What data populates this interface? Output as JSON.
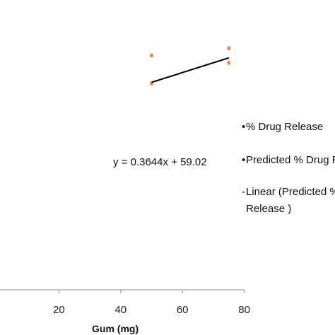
{
  "chart_data": {
    "type": "scatter",
    "xlabel": "Gum  (mg)",
    "xlim": [
      0,
      80
    ],
    "x_ticks": [
      "20",
      "40",
      "60",
      "80"
    ],
    "ylim": [
      0,
      100
    ],
    "series": [
      {
        "name": "% Drug Release",
        "color": "#4472C4",
        "marker": "dot",
        "x": [
          50,
          50,
          75,
          75
        ],
        "y": [
          87.3,
          76.7,
          89.8,
          84.6
        ]
      },
      {
        "name": "Predicted % Drug Release",
        "color": "#ED7D31",
        "marker": "square",
        "x": [
          50,
          50,
          75,
          75
        ],
        "y": [
          87.2,
          76.8,
          89.9,
          84.5
        ]
      },
      {
        "name": "Linear (Predicted % Drug Release )",
        "color": "#000000",
        "marker": "line",
        "x": [
          50,
          75
        ],
        "y": [
          77.24,
          86.35
        ]
      }
    ],
    "trendline_equation": "y = 0.3644x + 59.02",
    "legend": {
      "position": "right",
      "entries": [
        {
          "symbol": "•",
          "lines": [
            "% Drug Release"
          ],
          "color": "#4472C4"
        },
        {
          "symbol": "•",
          "lines": [
            "Predicted % Drug Release"
          ],
          "color": "#ED7D31"
        },
        {
          "symbol": "-",
          "lines": [
            "Linear (Predicted % Drug",
            "Release )"
          ],
          "color": "#000000"
        }
      ]
    },
    "grid": false
  }
}
